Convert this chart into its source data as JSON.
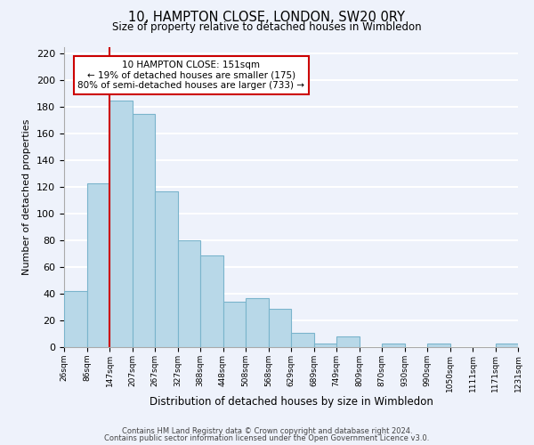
{
  "title": "10, HAMPTON CLOSE, LONDON, SW20 0RY",
  "subtitle": "Size of property relative to detached houses in Wimbledon",
  "xlabel": "Distribution of detached houses by size in Wimbledon",
  "ylabel": "Number of detached properties",
  "bar_values": [
    42,
    123,
    185,
    175,
    117,
    80,
    69,
    34,
    37,
    29,
    11,
    3,
    8,
    0,
    3,
    0,
    3,
    0,
    0,
    3
  ],
  "bar_labels": [
    "26sqm",
    "86sqm",
    "147sqm",
    "207sqm",
    "267sqm",
    "327sqm",
    "388sqm",
    "448sqm",
    "508sqm",
    "568sqm",
    "629sqm",
    "689sqm",
    "749sqm",
    "809sqm",
    "870sqm",
    "930sqm",
    "990sqm",
    "1050sqm",
    "1111sqm",
    "1171sqm",
    "1231sqm"
  ],
  "bar_color": "#b8d8e8",
  "bar_edge_color": "#7ab4cc",
  "highlight_index": 2,
  "ylim": [
    0,
    225
  ],
  "yticks": [
    0,
    20,
    40,
    60,
    80,
    100,
    120,
    140,
    160,
    180,
    200,
    220
  ],
  "property_size": "151sqm",
  "pct_smaller": "19%",
  "n_smaller": 175,
  "pct_larger": "80%",
  "n_larger": 733,
  "footer1": "Contains HM Land Registry data © Crown copyright and database right 2024.",
  "footer2": "Contains public sector information licensed under the Open Government Licence v3.0.",
  "background_color": "#eef2fb",
  "grid_color": "#ffffff",
  "annotation_box_color": "#ffffff",
  "annotation_box_edge": "#cc0000",
  "red_line_color": "#cc0000"
}
